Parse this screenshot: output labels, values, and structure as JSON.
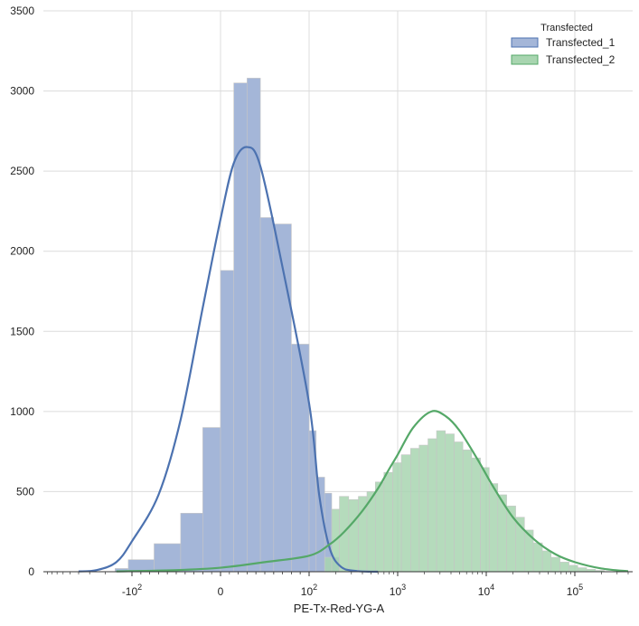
{
  "chart_data": {
    "type": "histogram",
    "xlabel": "PE-Tx-Red-YG-A",
    "ylabel": "",
    "x_scale": "logicle",
    "xlim": [
      -1000,
      450000
    ],
    "ylim": [
      0,
      3500
    ],
    "grid": true,
    "legend": {
      "title": "Transfected",
      "placement": "top-right",
      "entries": [
        "Transfected_1",
        "Transfected_2"
      ]
    },
    "x_ticks": [
      {
        "value": -100,
        "base": "-10",
        "exp": "2"
      },
      {
        "value": 0,
        "base": "0",
        "exp": ""
      },
      {
        "value": 100,
        "base": "10",
        "exp": "2"
      },
      {
        "value": 1000,
        "base": "10",
        "exp": "3"
      },
      {
        "value": 10000,
        "base": "10",
        "exp": "4"
      },
      {
        "value": 100000,
        "base": "10",
        "exp": "5"
      }
    ],
    "y_ticks": [
      0,
      500,
      1000,
      1500,
      2000,
      2500,
      3000,
      3500
    ],
    "series": [
      {
        "name": "Transfected_1",
        "color": "#4c72b0",
        "fill": "#a4b6d8",
        "bins": [
          {
            "x0": -155,
            "x1": -110,
            "count": 20
          },
          {
            "x0": -110,
            "x1": -75,
            "count": 75
          },
          {
            "x0": -75,
            "x1": -45,
            "count": 175
          },
          {
            "x0": -45,
            "x1": -20,
            "count": 365
          },
          {
            "x0": -20,
            "x1": 0,
            "count": 900
          },
          {
            "x0": 0,
            "x1": 15,
            "count": 1880
          },
          {
            "x0": 15,
            "x1": 30,
            "count": 3050
          },
          {
            "x0": 30,
            "x1": 45,
            "count": 3080
          },
          {
            "x0": 45,
            "x1": 60,
            "count": 2210
          },
          {
            "x0": 60,
            "x1": 80,
            "count": 2170
          },
          {
            "x0": 80,
            "x1": 100,
            "count": 1420
          },
          {
            "x0": 100,
            "x1": 120,
            "count": 880
          },
          {
            "x0": 120,
            "x1": 150,
            "count": 590
          },
          {
            "x0": 150,
            "x1": 180,
            "count": 490
          },
          {
            "x0": 180,
            "x1": 220,
            "count": 90
          }
        ],
        "fit_curve": [
          {
            "x": -400,
            "y": 2
          },
          {
            "x": -250,
            "y": 10
          },
          {
            "x": -150,
            "y": 60
          },
          {
            "x": -100,
            "y": 190
          },
          {
            "x": -70,
            "y": 480
          },
          {
            "x": -45,
            "y": 950
          },
          {
            "x": -20,
            "y": 1650
          },
          {
            "x": 0,
            "y": 2200
          },
          {
            "x": 15,
            "y": 2550
          },
          {
            "x": 30,
            "y": 2650
          },
          {
            "x": 45,
            "y": 2530
          },
          {
            "x": 70,
            "y": 1900
          },
          {
            "x": 100,
            "y": 1050
          },
          {
            "x": 130,
            "y": 480
          },
          {
            "x": 170,
            "y": 150
          },
          {
            "x": 230,
            "y": 30
          },
          {
            "x": 350,
            "y": 4
          },
          {
            "x": 600,
            "y": 0
          }
        ]
      },
      {
        "name": "Transfected_2",
        "color": "#55a868",
        "fill": "#a8d5b0",
        "bins": [
          {
            "x0": 150,
            "x1": 180,
            "count": 90
          },
          {
            "x0": 180,
            "x1": 220,
            "count": 390
          },
          {
            "x0": 220,
            "x1": 280,
            "count": 470
          },
          {
            "x0": 280,
            "x1": 360,
            "count": 450
          },
          {
            "x0": 360,
            "x1": 450,
            "count": 470
          },
          {
            "x0": 450,
            "x1": 560,
            "count": 500
          },
          {
            "x0": 560,
            "x1": 700,
            "count": 560
          },
          {
            "x0": 700,
            "x1": 880,
            "count": 620
          },
          {
            "x0": 880,
            "x1": 1100,
            "count": 680
          },
          {
            "x0": 1100,
            "x1": 1400,
            "count": 730
          },
          {
            "x0": 1400,
            "x1": 1750,
            "count": 770
          },
          {
            "x0": 1750,
            "x1": 2200,
            "count": 790
          },
          {
            "x0": 2200,
            "x1": 2750,
            "count": 830
          },
          {
            "x0": 2750,
            "x1": 3450,
            "count": 880
          },
          {
            "x0": 3450,
            "x1": 4350,
            "count": 860
          },
          {
            "x0": 4350,
            "x1": 5450,
            "count": 810
          },
          {
            "x0": 5450,
            "x1": 6850,
            "count": 760
          },
          {
            "x0": 6850,
            "x1": 8600,
            "count": 710
          },
          {
            "x0": 8600,
            "x1": 10800,
            "count": 650
          },
          {
            "x0": 10800,
            "x1": 13500,
            "count": 550
          },
          {
            "x0": 13500,
            "x1": 17000,
            "count": 480
          },
          {
            "x0": 17000,
            "x1": 21500,
            "count": 410
          },
          {
            "x0": 21500,
            "x1": 27000,
            "count": 340
          },
          {
            "x0": 27000,
            "x1": 34000,
            "count": 260
          },
          {
            "x0": 34000,
            "x1": 43000,
            "count": 180
          },
          {
            "x0": 43000,
            "x1": 54000,
            "count": 130
          },
          {
            "x0": 54000,
            "x1": 68000,
            "count": 90
          },
          {
            "x0": 68000,
            "x1": 86000,
            "count": 60
          },
          {
            "x0": 86000,
            "x1": 108000,
            "count": 40
          },
          {
            "x0": 108000,
            "x1": 136000,
            "count": 25
          },
          {
            "x0": 136000,
            "x1": 171000,
            "count": 15
          },
          {
            "x0": 171000,
            "x1": 215000,
            "count": 8
          }
        ],
        "fit_curve": [
          {
            "x": -150,
            "y": 2
          },
          {
            "x": -50,
            "y": 10
          },
          {
            "x": 0,
            "y": 25
          },
          {
            "x": 50,
            "y": 60
          },
          {
            "x": 100,
            "y": 100
          },
          {
            "x": 170,
            "y": 170
          },
          {
            "x": 250,
            "y": 250
          },
          {
            "x": 400,
            "y": 380
          },
          {
            "x": 600,
            "y": 520
          },
          {
            "x": 800,
            "y": 640
          },
          {
            "x": 1000,
            "y": 730
          },
          {
            "x": 1500,
            "y": 900
          },
          {
            "x": 2400,
            "y": 1000
          },
          {
            "x": 3500,
            "y": 970
          },
          {
            "x": 5000,
            "y": 880
          },
          {
            "x": 8000,
            "y": 700
          },
          {
            "x": 12000,
            "y": 530
          },
          {
            "x": 20000,
            "y": 340
          },
          {
            "x": 35000,
            "y": 200
          },
          {
            "x": 60000,
            "y": 110
          },
          {
            "x": 100000,
            "y": 60
          },
          {
            "x": 200000,
            "y": 20
          },
          {
            "x": 400000,
            "y": 3
          }
        ]
      }
    ]
  }
}
